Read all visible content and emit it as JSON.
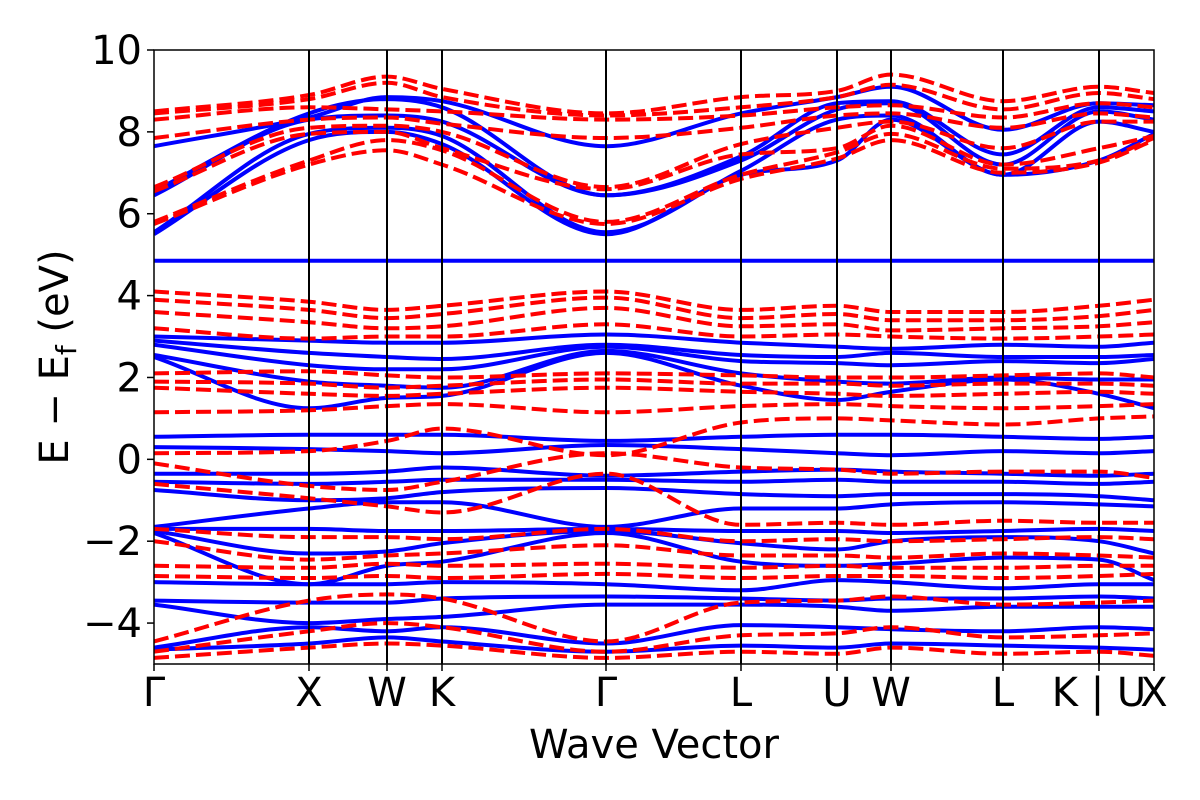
{
  "chart_data": {
    "type": "line",
    "title": "",
    "xlabel": "Wave Vector",
    "ylabel": "E − E",
    "ylabel_subscript": "f",
    "ylabel_unit": " (eV)",
    "ylim": [
      -5,
      10
    ],
    "yticks": [
      -4,
      -2,
      0,
      2,
      4,
      6,
      8,
      10
    ],
    "ytick_labels": [
      "−4",
      "−2",
      "0",
      "2",
      "4",
      "6",
      "8",
      "10"
    ],
    "grid": false,
    "xlim": [
      0,
      10.0
    ],
    "kpoints": [
      {
        "label": "Γ",
        "x": 0.0
      },
      {
        "label": "X",
        "x": 1.55
      },
      {
        "label": "W",
        "x": 2.33
      },
      {
        "label": "K",
        "x": 2.88
      },
      {
        "label": "Γ",
        "x": 4.52
      },
      {
        "label": "L",
        "x": 5.87
      },
      {
        "label": "U",
        "x": 6.83
      },
      {
        "label": "W",
        "x": 7.37
      },
      {
        "label": "L",
        "x": 8.49
      },
      {
        "label": "K | U",
        "x": 9.45
      },
      {
        "label": "X",
        "x": 10.0
      }
    ],
    "series": [
      {
        "style": "solid",
        "color": "#0000ff",
        "bands": [
          [
            7.65,
            8.35,
            8.85,
            8.75,
            7.65,
            8.45,
            8.85,
            9.1,
            8.05,
            8.7,
            8.65
          ],
          [
            6.55,
            8.45,
            8.8,
            8.6,
            6.45,
            7.4,
            8.7,
            8.75,
            7.45,
            8.6,
            8.5
          ],
          [
            6.45,
            8.3,
            8.4,
            8.25,
            6.45,
            7.3,
            8.55,
            8.7,
            7.2,
            8.5,
            8.3
          ],
          [
            5.55,
            7.95,
            8.1,
            7.9,
            5.55,
            7.05,
            8.3,
            8.4,
            6.95,
            8.25,
            8.0
          ],
          [
            5.5,
            7.8,
            8.0,
            7.7,
            5.5,
            6.95,
            7.3,
            8.3,
            6.95,
            7.3,
            7.95
          ],
          [
            4.85,
            4.85,
            4.85,
            4.85,
            4.85,
            4.85,
            4.85,
            4.85,
            4.85,
            4.85,
            4.85
          ],
          [
            3.0,
            2.9,
            2.85,
            2.85,
            3.05,
            2.85,
            2.75,
            2.7,
            2.8,
            2.75,
            2.85
          ],
          [
            2.9,
            2.6,
            2.5,
            2.45,
            2.8,
            2.55,
            2.5,
            2.6,
            2.5,
            2.5,
            2.55
          ],
          [
            2.8,
            2.3,
            2.2,
            2.2,
            2.75,
            2.4,
            2.35,
            2.3,
            2.4,
            2.35,
            2.45
          ],
          [
            2.55,
            1.9,
            1.8,
            1.75,
            2.65,
            2.1,
            1.9,
            1.85,
            2.0,
            1.95,
            1.95
          ],
          [
            2.5,
            1.25,
            1.5,
            1.55,
            2.6,
            1.8,
            1.45,
            1.65,
            1.95,
            1.6,
            1.25
          ],
          [
            0.55,
            0.6,
            0.6,
            0.6,
            0.45,
            0.55,
            0.6,
            0.6,
            0.55,
            0.5,
            0.55
          ],
          [
            0.3,
            0.25,
            0.2,
            0.15,
            0.35,
            0.25,
            0.15,
            0.1,
            0.2,
            0.15,
            0.2
          ],
          [
            -0.35,
            -0.35,
            -0.3,
            -0.2,
            -0.4,
            -0.3,
            -0.25,
            -0.3,
            -0.35,
            -0.4,
            -0.35
          ],
          [
            -0.55,
            -0.6,
            -0.55,
            -0.5,
            -0.5,
            -0.55,
            -0.5,
            -0.55,
            -0.55,
            -0.6,
            -0.55
          ],
          [
            -0.75,
            -1.0,
            -0.95,
            -0.8,
            -0.7,
            -0.85,
            -0.9,
            -0.85,
            -0.85,
            -0.9,
            -1.0
          ],
          [
            -1.65,
            -1.2,
            -1.05,
            -1.05,
            -1.65,
            -1.2,
            -1.2,
            -1.1,
            -1.05,
            -1.1,
            -1.15
          ],
          [
            -1.7,
            -1.7,
            -1.75,
            -1.75,
            -1.7,
            -1.75,
            -1.75,
            -1.8,
            -1.75,
            -1.7,
            -1.75
          ],
          [
            -1.75,
            -2.3,
            -2.25,
            -2.05,
            -1.75,
            -2.05,
            -2.2,
            -2.0,
            -1.9,
            -2.0,
            -2.3
          ],
          [
            -1.8,
            -3.05,
            -2.6,
            -2.5,
            -1.8,
            -2.5,
            -2.6,
            -2.55,
            -2.4,
            -2.45,
            -2.95
          ],
          [
            -3.0,
            -3.05,
            -3.05,
            -3.0,
            -3.05,
            -3.2,
            -2.95,
            -3.0,
            -3.15,
            -3.05,
            -3.05
          ],
          [
            -3.45,
            -3.5,
            -3.5,
            -3.4,
            -3.35,
            -3.4,
            -3.45,
            -3.4,
            -3.4,
            -3.35,
            -3.4
          ],
          [
            -3.55,
            -4.0,
            -3.9,
            -3.85,
            -3.55,
            -3.55,
            -3.6,
            -3.7,
            -3.6,
            -3.6,
            -3.6
          ],
          [
            -4.6,
            -4.1,
            -4.2,
            -4.1,
            -4.5,
            -4.05,
            -4.1,
            -4.15,
            -4.2,
            -4.1,
            -4.15
          ],
          [
            -4.65,
            -4.5,
            -4.35,
            -4.45,
            -4.7,
            -4.55,
            -4.6,
            -4.5,
            -4.55,
            -4.6,
            -4.65
          ]
        ]
      },
      {
        "style": "dashed",
        "color": "#ff0000",
        "bands": [
          [
            8.5,
            8.9,
            9.35,
            9.05,
            8.45,
            8.85,
            9.0,
            9.4,
            8.75,
            9.1,
            8.95
          ],
          [
            8.45,
            8.8,
            9.2,
            8.85,
            8.4,
            8.6,
            8.85,
            9.15,
            8.55,
            8.95,
            8.8
          ],
          [
            8.3,
            8.6,
            8.55,
            8.5,
            8.3,
            8.4,
            8.6,
            8.65,
            8.35,
            8.7,
            8.6
          ],
          [
            7.85,
            8.3,
            8.35,
            8.2,
            7.85,
            8.1,
            8.4,
            8.45,
            8.1,
            8.45,
            8.35
          ],
          [
            6.65,
            8.1,
            8.15,
            8.0,
            6.65,
            7.7,
            8.1,
            8.25,
            7.6,
            8.25,
            8.25
          ],
          [
            6.55,
            7.95,
            8.0,
            7.6,
            6.6,
            7.45,
            7.6,
            8.15,
            7.2,
            7.6,
            7.9
          ],
          [
            5.8,
            7.3,
            7.8,
            7.55,
            5.8,
            6.95,
            7.5,
            7.95,
            7.1,
            7.3,
            7.85
          ],
          [
            5.75,
            7.2,
            7.55,
            7.2,
            5.75,
            6.85,
            7.35,
            7.8,
            7.0,
            7.25,
            7.8
          ],
          [
            4.1,
            3.85,
            3.65,
            3.75,
            4.1,
            3.65,
            3.75,
            3.6,
            3.6,
            3.75,
            3.9
          ],
          [
            3.9,
            3.65,
            3.45,
            3.55,
            3.95,
            3.45,
            3.55,
            3.4,
            3.4,
            3.5,
            3.65
          ],
          [
            3.6,
            3.35,
            3.2,
            3.25,
            3.7,
            3.25,
            3.3,
            3.15,
            3.2,
            3.25,
            3.35
          ],
          [
            3.2,
            2.95,
            3.0,
            3.0,
            3.3,
            3.0,
            3.05,
            3.0,
            2.95,
            3.0,
            3.05
          ],
          [
            2.1,
            2.15,
            2.05,
            2.0,
            2.1,
            2.05,
            2.0,
            2.0,
            2.05,
            2.1,
            2.0
          ],
          [
            1.9,
            1.85,
            1.75,
            1.8,
            1.95,
            1.85,
            1.85,
            1.8,
            1.85,
            1.85,
            1.8
          ],
          [
            1.75,
            1.6,
            1.55,
            1.6,
            1.75,
            1.65,
            1.6,
            1.55,
            1.6,
            1.65,
            1.6
          ],
          [
            1.15,
            1.2,
            1.3,
            1.35,
            1.15,
            1.3,
            1.35,
            1.3,
            1.25,
            1.3,
            1.35
          ],
          [
            0.15,
            0.2,
            0.45,
            0.75,
            0.1,
            0.9,
            1.0,
            0.95,
            0.85,
            1.0,
            1.05
          ],
          [
            -0.1,
            -0.65,
            -0.75,
            -0.55,
            0.15,
            -0.2,
            -0.25,
            -0.35,
            -0.3,
            -0.3,
            -0.45
          ],
          [
            -0.6,
            -0.95,
            -1.15,
            -1.3,
            -0.35,
            -1.6,
            -1.55,
            -1.6,
            -1.5,
            -1.55,
            -1.55
          ],
          [
            -1.7,
            -1.9,
            -1.9,
            -1.95,
            -1.7,
            -2.0,
            -1.95,
            -2.0,
            -1.95,
            -1.9,
            -1.95
          ],
          [
            -2.0,
            -2.45,
            -2.35,
            -2.3,
            -2.1,
            -2.35,
            -2.35,
            -2.4,
            -2.3,
            -2.35,
            -2.4
          ],
          [
            -2.6,
            -2.65,
            -2.55,
            -2.6,
            -2.55,
            -2.65,
            -2.6,
            -2.65,
            -2.65,
            -2.6,
            -2.6
          ],
          [
            -2.85,
            -2.9,
            -2.85,
            -2.9,
            -2.8,
            -2.9,
            -2.85,
            -2.85,
            -2.9,
            -2.85,
            -2.8
          ],
          [
            -4.45,
            -3.45,
            -3.3,
            -3.4,
            -4.45,
            -3.5,
            -3.45,
            -3.35,
            -3.55,
            -3.5,
            -3.45
          ],
          [
            -4.7,
            -4.2,
            -4.0,
            -4.1,
            -4.7,
            -4.3,
            -4.25,
            -4.1,
            -4.35,
            -4.3,
            -4.25
          ],
          [
            -4.85,
            -4.6,
            -4.5,
            -4.55,
            -4.85,
            -4.7,
            -4.75,
            -4.6,
            -4.75,
            -4.7,
            -4.8
          ]
        ]
      }
    ]
  }
}
